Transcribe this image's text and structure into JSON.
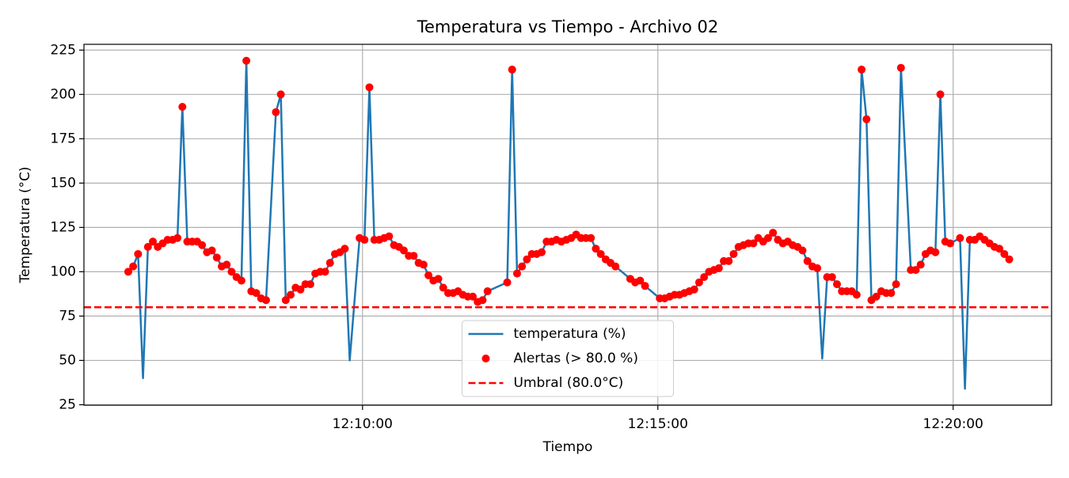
{
  "chart_data": {
    "type": "line",
    "title": "Temperatura vs Tiempo - Archivo 02",
    "x_label": "Tiempo",
    "y_label": "Temperatura (°C)",
    "x": [
      "12:06:02",
      "12:06:07",
      "12:06:12",
      "12:06:17",
      "12:06:22",
      "12:06:27",
      "12:06:32",
      "12:06:37",
      "12:06:42",
      "12:06:47",
      "12:06:52",
      "12:06:57",
      "12:07:02",
      "12:07:07",
      "12:07:12",
      "12:07:17",
      "12:07:22",
      "12:07:27",
      "12:07:32",
      "12:07:37",
      "12:07:42",
      "12:07:47",
      "12:07:52",
      "12:07:57",
      "12:08:02",
      "12:08:07",
      "12:08:12",
      "12:08:17",
      "12:08:22",
      "12:08:32",
      "12:08:37",
      "12:08:42",
      "12:08:47",
      "12:08:52",
      "12:08:57",
      "12:09:02",
      "12:09:07",
      "12:09:12",
      "12:09:17",
      "12:09:22",
      "12:09:27",
      "12:09:32",
      "12:09:37",
      "12:09:42",
      "12:09:47",
      "12:09:57",
      "12:10:02",
      "12:10:07",
      "12:10:12",
      "12:10:17",
      "12:10:22",
      "12:10:27",
      "12:10:32",
      "12:10:37",
      "12:10:42",
      "12:10:47",
      "12:10:52",
      "12:10:57",
      "12:11:02",
      "12:11:07",
      "12:11:12",
      "12:11:17",
      "12:11:22",
      "12:11:27",
      "12:11:32",
      "12:11:37",
      "12:11:42",
      "12:11:47",
      "12:11:52",
      "12:11:57",
      "12:12:02",
      "12:12:07",
      "12:12:27",
      "12:12:32",
      "12:12:37",
      "12:12:42",
      "12:12:47",
      "12:12:52",
      "12:12:57",
      "12:13:02",
      "12:13:07",
      "12:13:12",
      "12:13:17",
      "12:13:22",
      "12:13:27",
      "12:13:32",
      "12:13:37",
      "12:13:42",
      "12:13:47",
      "12:13:52",
      "12:13:57",
      "12:14:02",
      "12:14:07",
      "12:14:12",
      "12:14:17",
      "12:14:32",
      "12:14:37",
      "12:14:42",
      "12:14:47",
      "12:15:02",
      "12:15:07",
      "12:15:12",
      "12:15:17",
      "12:15:22",
      "12:15:27",
      "12:15:32",
      "12:15:37",
      "12:15:42",
      "12:15:47",
      "12:15:52",
      "12:15:57",
      "12:16:02",
      "12:16:07",
      "12:16:12",
      "12:16:17",
      "12:16:22",
      "12:16:27",
      "12:16:32",
      "12:16:37",
      "12:16:42",
      "12:16:47",
      "12:16:52",
      "12:16:57",
      "12:17:02",
      "12:17:07",
      "12:17:12",
      "12:17:17",
      "12:17:22",
      "12:17:27",
      "12:17:32",
      "12:17:37",
      "12:17:42",
      "12:17:47",
      "12:17:52",
      "12:17:57",
      "12:18:02",
      "12:18:07",
      "12:18:12",
      "12:18:17",
      "12:18:22",
      "12:18:27",
      "12:18:32",
      "12:18:37",
      "12:18:42",
      "12:18:47",
      "12:18:52",
      "12:18:57",
      "12:19:02",
      "12:19:07",
      "12:19:17",
      "12:19:22",
      "12:19:27",
      "12:19:32",
      "12:19:37",
      "12:19:42",
      "12:19:47",
      "12:19:52",
      "12:19:57",
      "12:20:07",
      "12:20:12",
      "12:20:17",
      "12:20:22",
      "12:20:27",
      "12:20:32",
      "12:20:37",
      "12:20:42",
      "12:20:47",
      "12:20:52",
      "12:20:57"
    ],
    "series": [
      {
        "name": "temperatura (%)",
        "color": "#1f77b4",
        "values": [
          100,
          103,
          110,
          40,
          114,
          117,
          114,
          116,
          118,
          118,
          119,
          193,
          117,
          117,
          117,
          115,
          111,
          112,
          108,
          103,
          104,
          100,
          97,
          95,
          219,
          89,
          88,
          85,
          84,
          190,
          200,
          84,
          87,
          91,
          90,
          93,
          93,
          99,
          100,
          100,
          105,
          110,
          111,
          113,
          50,
          119,
          118,
          204,
          118,
          118,
          119,
          120,
          115,
          114,
          112,
          109,
          109,
          105,
          104,
          98,
          95,
          96,
          91,
          88,
          88,
          89,
          87,
          86,
          86,
          83,
          84,
          89,
          94,
          214,
          99,
          103,
          107,
          110,
          110,
          111,
          117,
          117,
          118,
          117,
          118,
          119,
          121,
          119,
          119,
          119,
          113,
          110,
          107,
          105,
          103,
          96,
          94,
          95,
          92,
          85,
          85,
          86,
          87,
          87,
          88,
          89,
          90,
          94,
          97,
          100,
          101,
          102,
          106,
          106,
          110,
          114,
          115,
          116,
          116,
          119,
          117,
          119,
          122,
          118,
          116,
          117,
          115,
          114,
          112,
          106,
          103,
          102,
          51,
          97,
          97,
          93,
          89,
          89,
          89,
          87,
          214,
          186,
          84,
          86,
          89,
          88,
          88,
          93,
          215,
          101,
          101,
          104,
          110,
          112,
          111,
          200,
          117,
          116,
          119,
          34,
          118,
          118,
          120,
          118,
          116,
          114,
          113,
          110,
          107
        ]
      }
    ],
    "alerts": {
      "name": "Alertas (> 80.0 %)",
      "color": "#ff0000"
    },
    "threshold": {
      "name": "Umbral (80.0°C)",
      "value": 80,
      "color": "#ff0000"
    },
    "xlim": [
      "12:05:17",
      "12:21:40"
    ],
    "xticks": [
      "12:10:00",
      "12:15:00",
      "12:20:00"
    ],
    "ylim": [
      24.75,
      228.25
    ],
    "yticks": [
      25,
      50,
      75,
      100,
      125,
      150,
      175,
      200,
      225
    ],
    "grid": true,
    "legend": "lower center"
  }
}
